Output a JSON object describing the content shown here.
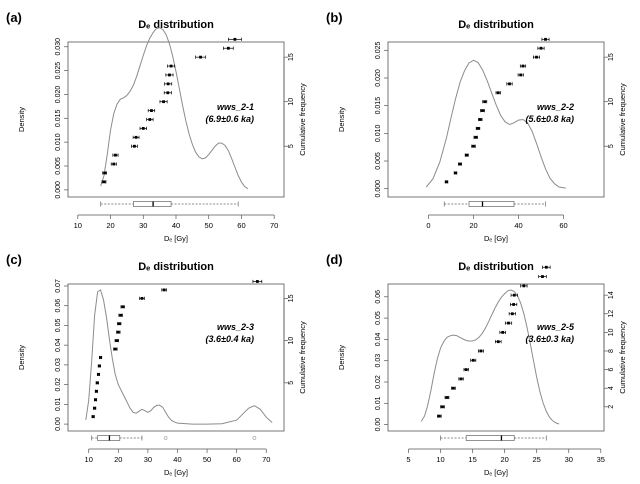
{
  "chart_data": [
    {
      "panel_label": "(a)",
      "type": "line",
      "title": "Dₑ distribution",
      "xlabel": "Dₑ [Gy]",
      "ylabel": "Density",
      "y2label": "Cumulative frequency",
      "annotation": [
        "wws_2-1",
        "(6.9±0.6 ka)"
      ],
      "xlim": [
        7,
        73
      ],
      "ylim": [
        -0.0015,
        0.031
      ],
      "y2lim": [
        -0.7,
        16.7
      ],
      "xticks": [
        10,
        20,
        30,
        40,
        50,
        60,
        70
      ],
      "yticks": [
        "0.000",
        "0.005",
        "0.010",
        "0.015",
        "0.020",
        "0.025",
        "0.030"
      ],
      "y2ticks": [
        5,
        10,
        15
      ],
      "density_curve": {
        "x": [
          17,
          18,
          19,
          20,
          21,
          22,
          23,
          24,
          25,
          26,
          27,
          28,
          29,
          30,
          31,
          32,
          33,
          34,
          35,
          36,
          37,
          38,
          39,
          40,
          41,
          42,
          43,
          44,
          45,
          46,
          47,
          48,
          49,
          50,
          51,
          52,
          53,
          54,
          55,
          56,
          57,
          58,
          59,
          60,
          61,
          62
        ],
        "y": [
          0.0008,
          0.003,
          0.0075,
          0.0125,
          0.016,
          0.018,
          0.019,
          0.0193,
          0.0198,
          0.0207,
          0.022,
          0.0238,
          0.026,
          0.0282,
          0.0302,
          0.0318,
          0.033,
          0.0338,
          0.034,
          0.0336,
          0.0325,
          0.0306,
          0.028,
          0.0248,
          0.0213,
          0.0178,
          0.0145,
          0.0117,
          0.0095,
          0.0079,
          0.0069,
          0.0065,
          0.0067,
          0.0074,
          0.0083,
          0.0092,
          0.0098,
          0.0098,
          0.0093,
          0.0082,
          0.0066,
          0.0048,
          0.003,
          0.0016,
          0.0007,
          0.0002
        ]
      },
      "cumulative_points": {
        "x": [
          18,
          18.2,
          21,
          21.5,
          27.3,
          27.8,
          30,
          32,
          32.5,
          36.2,
          37.5,
          37.6,
          38,
          38.5,
          47.5,
          56,
          58
        ],
        "xerr": [
          0.6,
          0.6,
          0.8,
          0.8,
          0.9,
          0.9,
          1,
          1,
          1,
          1.1,
          1.1,
          1.1,
          1.1,
          1.1,
          1.5,
          1.5,
          2
        ],
        "y": [
          1,
          2,
          3,
          4,
          5,
          6,
          7,
          8,
          9,
          10,
          11,
          12,
          13,
          14,
          15,
          16,
          17
        ]
      },
      "boxplot": {
        "min": 17,
        "q1": 27,
        "median": 33,
        "q3": 38.5,
        "max": 59,
        "outliers": []
      }
    },
    {
      "panel_label": "(b)",
      "type": "line",
      "title": "Dₑ distribution",
      "xlabel": "Dₑ [Gy]",
      "ylabel": "Density",
      "y2label": "Cumulative frequency",
      "annotation": [
        "wws_2-2",
        "(5.6±0.8 ka)"
      ],
      "xlim": [
        -18,
        78
      ],
      "ylim": [
        -0.0015,
        0.0265
      ],
      "y2lim": [
        -0.7,
        16.7
      ],
      "xticks": [
        0,
        20,
        40,
        60
      ],
      "yticks": [
        "0.000",
        "0.005",
        "0.010",
        "0.015",
        "0.020",
        "0.025"
      ],
      "y2ticks": [
        5,
        10,
        15
      ],
      "density_curve": {
        "x": [
          -1,
          2,
          5,
          8,
          10,
          12,
          14,
          16,
          18,
          20,
          22,
          24,
          26,
          28,
          30,
          32,
          34,
          36,
          38,
          40,
          42,
          44,
          46,
          48,
          50,
          52,
          54,
          56,
          58,
          61
        ],
        "y": [
          0.0003,
          0.0018,
          0.0048,
          0.0092,
          0.0128,
          0.0162,
          0.0192,
          0.0213,
          0.0227,
          0.0232,
          0.0228,
          0.0215,
          0.0196,
          0.0174,
          0.0152,
          0.0133,
          0.0121,
          0.0116,
          0.0119,
          0.0124,
          0.0125,
          0.0119,
          0.0104,
          0.0082,
          0.0058,
          0.0036,
          0.0019,
          0.0009,
          0.0003,
          0.0001
        ]
      },
      "cumulative_points": {
        "x": [
          8,
          12,
          14,
          17,
          20,
          21,
          22,
          23,
          24,
          25,
          31,
          36,
          41,
          42,
          48,
          50,
          52
        ],
        "xerr": [
          0.6,
          0.6,
          0.7,
          0.7,
          0.8,
          0.8,
          0.8,
          0.8,
          0.9,
          0.9,
          1,
          1.2,
          1.2,
          1.2,
          1.4,
          1.4,
          1.6
        ],
        "y": [
          1,
          2,
          3,
          4,
          5,
          6,
          7,
          8,
          9,
          10,
          11,
          12,
          13,
          14,
          15,
          16,
          17
        ]
      },
      "boxplot": {
        "min": 7,
        "q1": 18,
        "median": 24,
        "q3": 38,
        "max": 52,
        "outliers": []
      }
    },
    {
      "panel_label": "(c)",
      "type": "line",
      "title": "Dₑ distribution",
      "xlabel": "Dₑ [Gy]",
      "ylabel": "Density",
      "y2label": "Cumulative frequency",
      "annotation": [
        "wws_2-3",
        "(3.6±0.4 ka)"
      ],
      "xlim": [
        3,
        76
      ],
      "ylim": [
        -0.0035,
        0.071
      ],
      "y2lim": [
        -0.7,
        16.7
      ],
      "xticks": [
        10,
        20,
        30,
        40,
        50,
        60,
        70
      ],
      "yticks": [
        "0.00",
        "0.01",
        "0.02",
        "0.03",
        "0.04",
        "0.05",
        "0.06",
        "0.07"
      ],
      "y2ticks": [
        5,
        10,
        15
      ],
      "density_curve": {
        "x": [
          9,
          10,
          11,
          12,
          13,
          14,
          15,
          16,
          17,
          18,
          19,
          20,
          21,
          22,
          23,
          24,
          25,
          26,
          27,
          28,
          29,
          30,
          31,
          32,
          33,
          34,
          35,
          36,
          37,
          38,
          39,
          40,
          45,
          50,
          55,
          60,
          62,
          64,
          66,
          68,
          70,
          72
        ],
        "y": [
          0.002,
          0.012,
          0.032,
          0.055,
          0.067,
          0.068,
          0.063,
          0.054,
          0.043,
          0.033,
          0.025,
          0.02,
          0.017,
          0.014,
          0.011,
          0.008,
          0.006,
          0.0055,
          0.0065,
          0.0075,
          0.0068,
          0.006,
          0.0068,
          0.0085,
          0.0095,
          0.0095,
          0.0085,
          0.006,
          0.0035,
          0.0018,
          0.001,
          0.0005,
          0,
          0,
          0.0002,
          0.002,
          0.005,
          0.008,
          0.0093,
          0.0075,
          0.0035,
          0.0008
        ]
      },
      "cumulative_points": {
        "x": [
          11.5,
          12,
          12.3,
          12.6,
          12.9,
          13.3,
          13.6,
          14,
          19,
          19.5,
          20,
          20.3,
          20.8,
          21.5,
          28,
          35.5,
          67
        ],
        "xerr": [
          0.4,
          0.4,
          0.4,
          0.4,
          0.4,
          0.4,
          0.4,
          0.4,
          0.6,
          0.6,
          0.6,
          0.6,
          0.6,
          0.6,
          0.8,
          0.8,
          1.5
        ],
        "y": [
          1,
          2,
          3,
          4,
          5,
          6,
          7,
          8,
          9,
          10,
          11,
          12,
          13,
          14,
          15,
          16,
          17
        ]
      },
      "boxplot": {
        "min": 11,
        "q1": 13,
        "median": 17,
        "q3": 20.5,
        "max": 28,
        "outliers": [
          36,
          66
        ]
      }
    },
    {
      "panel_label": "(d)",
      "type": "line",
      "title": "Dₑ distribution",
      "xlabel": "Dₑ [Gy]",
      "ylabel": "Density",
      "y2label": "Cumulative frequency",
      "annotation": [
        "wws_2-5",
        "(3.6±0.3 ka)"
      ],
      "xlim": [
        1.8,
        35.5
      ],
      "ylim": [
        -0.003,
        0.066
      ],
      "y2lim": [
        -0.6,
        15.2
      ],
      "xticks": [
        5,
        10,
        15,
        20,
        25,
        30,
        35
      ],
      "yticks": [
        "0.00",
        "0.01",
        "0.02",
        "0.03",
        "0.04",
        "0.05",
        "0.06"
      ],
      "y2ticks": [
        2,
        4,
        6,
        8,
        10,
        12,
        14
      ],
      "density_curve": {
        "x": [
          7,
          7.5,
          8,
          8.5,
          9,
          9.5,
          10,
          10.5,
          11,
          11.5,
          12,
          12.5,
          13,
          13.5,
          14,
          14.5,
          15,
          15.5,
          16,
          16.5,
          17,
          17.5,
          18,
          18.5,
          19,
          19.5,
          20,
          20.5,
          21,
          21.5,
          22,
          22.5,
          23,
          23.5,
          24,
          24.5,
          25,
          25.5,
          26,
          26.5,
          27,
          27.5,
          28,
          28.5
        ],
        "y": [
          0.0015,
          0.004,
          0.009,
          0.016,
          0.024,
          0.031,
          0.036,
          0.039,
          0.041,
          0.0417,
          0.042,
          0.0418,
          0.041,
          0.0402,
          0.0395,
          0.0392,
          0.0393,
          0.0398,
          0.041,
          0.0428,
          0.0453,
          0.0483,
          0.0515,
          0.0547,
          0.0575,
          0.0598,
          0.0615,
          0.0628,
          0.0632,
          0.0625,
          0.0605,
          0.057,
          0.052,
          0.0455,
          0.038,
          0.03,
          0.0222,
          0.0155,
          0.0102,
          0.0062,
          0.0035,
          0.0018,
          0.0008,
          0.0003
        ]
      },
      "cumulative_points": {
        "x": [
          9.8,
          10.3,
          11,
          12,
          13.2,
          14,
          15.1,
          16.3,
          19,
          19.7,
          20.6,
          21.2,
          21.4,
          21.5,
          23,
          25.9,
          26.5
        ],
        "xerr": [
          0.3,
          0.3,
          0.3,
          0.3,
          0.35,
          0.35,
          0.4,
          0.4,
          0.45,
          0.45,
          0.5,
          0.5,
          0.5,
          0.5,
          0.5,
          0.6,
          0.6
        ],
        "y": [
          1,
          2,
          3,
          4,
          5,
          6,
          7,
          8,
          9,
          10,
          11,
          12,
          13,
          14,
          15,
          16,
          17
        ]
      },
      "boxplot": {
        "min": 10,
        "q1": 14,
        "median": 19.5,
        "q3": 21.5,
        "max": 26.5,
        "outliers": []
      }
    }
  ]
}
